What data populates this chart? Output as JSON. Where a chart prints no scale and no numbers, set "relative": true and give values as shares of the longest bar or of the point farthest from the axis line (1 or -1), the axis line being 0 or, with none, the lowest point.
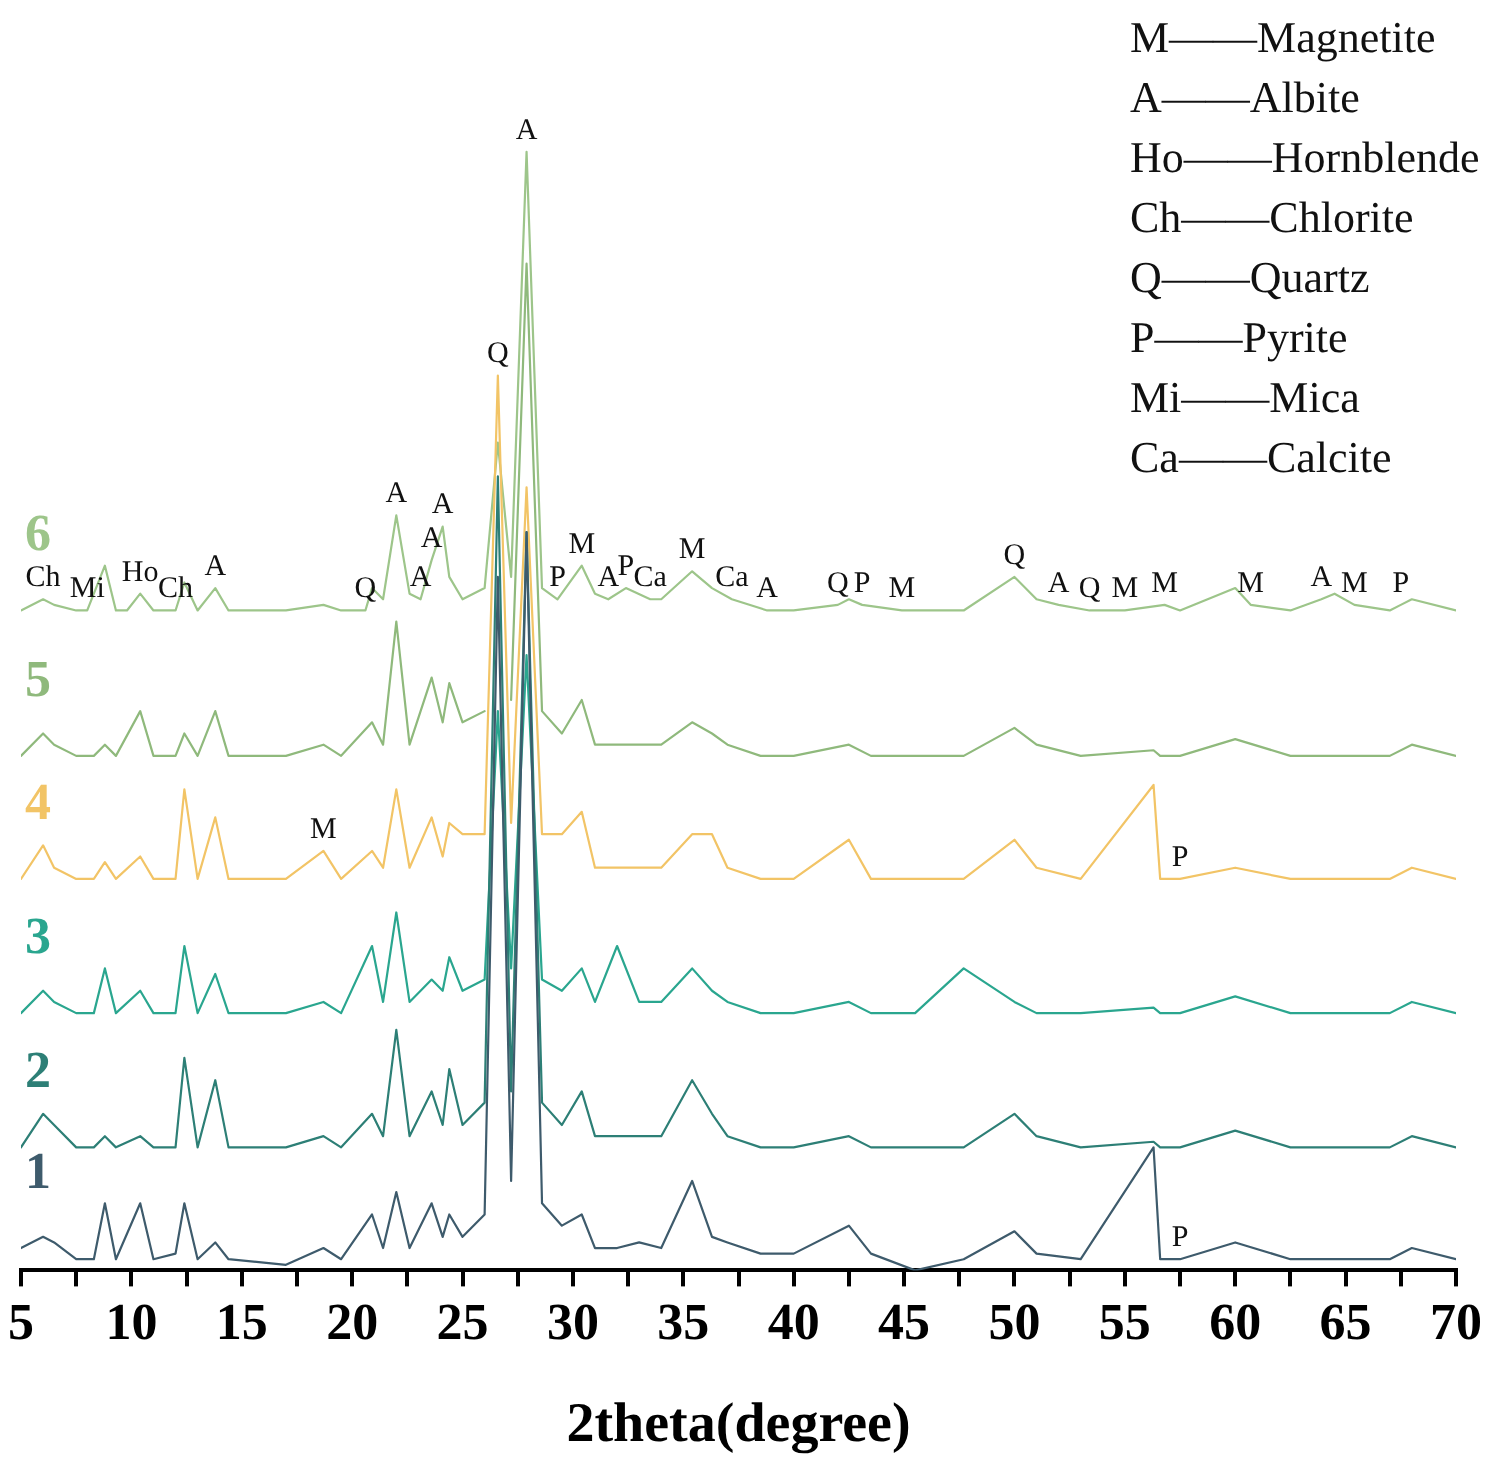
{
  "chart_data": {
    "type": "line",
    "relative": true,
    "xlabel": "2theta(degree)",
    "xlim": [
      5,
      70
    ],
    "xticks": [
      5,
      {
        "value": 7.5,
        "label": null
      },
      10,
      {
        "value": 12.5,
        "label": null
      },
      15,
      {
        "value": 17.5,
        "label": null
      },
      20,
      {
        "value": 22.5,
        "label": null
      },
      25,
      {
        "value": 27.5,
        "label": null
      },
      30,
      {
        "value": 32.5,
        "label": null
      },
      35,
      {
        "value": 37.5,
        "label": null
      },
      40,
      {
        "value": 42.5,
        "label": null
      },
      45,
      {
        "value": 47.5,
        "label": null
      },
      50,
      {
        "value": 52.5,
        "label": null
      },
      55,
      {
        "value": 57.5,
        "label": null
      },
      60,
      {
        "value": 62.5,
        "label": null
      },
      65,
      {
        "value": 67.5,
        "label": null
      },
      70
    ],
    "x": [
      5,
      6,
      6.5,
      7.5,
      8.3,
      8.8,
      9.3,
      10.4,
      11,
      12,
      12.4,
      13,
      13.8,
      14.4,
      17,
      18.7,
      19.5,
      20.9,
      21.4,
      22,
      22.6,
      23.6,
      24.1,
      24.4,
      25,
      26,
      26.6,
      27.2,
      27.9,
      28.6,
      29.5,
      30.4,
      31,
      32,
      33,
      34,
      35.4,
      36.3,
      37,
      38.5,
      40,
      42.5,
      43.5,
      45.5,
      47.7,
      50,
      51,
      53,
      56.3,
      56.6,
      57.5,
      60,
      62.5,
      64.5,
      67,
      68,
      70
    ],
    "series": [
      {
        "name": "1",
        "color": "#3e5b6c",
        "values": [
          0.02,
          0.03,
          0.025,
          0.01,
          0.01,
          0.06,
          0.01,
          0.06,
          0.01,
          0.015,
          0.06,
          0.01,
          0.025,
          0.01,
          0.005,
          0.02,
          0.01,
          0.05,
          0.02,
          0.07,
          0.02,
          0.06,
          0.03,
          0.05,
          0.03,
          0.05,
          0.62,
          0.08,
          0.66,
          0.06,
          0.04,
          0.05,
          0.02,
          0.02,
          0.025,
          0.02,
          0.08,
          0.03,
          0.025,
          0.015,
          0.015,
          0.04,
          0.015,
          0,
          0.01,
          0.035,
          0.015,
          0.01,
          0.11,
          0.01,
          0.01,
          0.025,
          0.01,
          0.01,
          0.01,
          0.02,
          0.01
        ]
      },
      {
        "name": "2",
        "color": "#2d7f76",
        "values": [
          0.11,
          0.14,
          0.13,
          0.11,
          0.11,
          0.12,
          0.11,
          0.12,
          0.11,
          0.11,
          0.19,
          0.11,
          0.17,
          0.11,
          0.11,
          0.12,
          0.11,
          0.14,
          0.12,
          0.215,
          0.12,
          0.16,
          0.13,
          0.18,
          0.13,
          0.15,
          0.71,
          0.16,
          0.66,
          0.15,
          0.13,
          0.16,
          0.12,
          0.12,
          0.12,
          0.12,
          0.17,
          0.14,
          0.12,
          0.11,
          0.11,
          0.12,
          0.11,
          0.11,
          0.11,
          0.14,
          0.12,
          0.11,
          0.115,
          0.11,
          0.11,
          0.125,
          0.11,
          0.11,
          0.11,
          0.12,
          0.11
        ]
      },
      {
        "name": "3",
        "color": "#2aa68f",
        "values": [
          0.23,
          0.25,
          0.24,
          0.23,
          0.23,
          0.27,
          0.23,
          0.25,
          0.23,
          0.23,
          0.29,
          0.23,
          0.265,
          0.23,
          0.23,
          0.24,
          0.23,
          0.29,
          0.24,
          0.32,
          0.24,
          0.26,
          0.25,
          0.28,
          0.25,
          0.26,
          0.5,
          0.27,
          0.55,
          0.26,
          0.25,
          0.27,
          0.24,
          0.29,
          0.24,
          0.24,
          0.27,
          0.25,
          0.24,
          0.23,
          0.23,
          0.24,
          0.23,
          0.23,
          0.27,
          0.24,
          0.23,
          0.23,
          0.235,
          0.23,
          0.23,
          0.245,
          0.23,
          0.23,
          0.23,
          0.24,
          0.23
        ]
      },
      {
        "name": "4",
        "color": "#f2c466",
        "values": [
          0.35,
          0.38,
          0.36,
          0.35,
          0.35,
          0.365,
          0.35,
          0.37,
          0.35,
          0.35,
          0.43,
          0.35,
          0.405,
          0.35,
          0.35,
          0.375,
          0.35,
          0.375,
          0.36,
          0.43,
          0.36,
          0.405,
          0.37,
          0.4,
          0.39,
          0.39,
          0.8,
          0.4,
          0.7,
          0.39,
          0.39,
          0.41,
          0.36,
          0.36,
          0.36,
          0.36,
          0.39,
          0.39,
          0.36,
          0.35,
          0.35,
          0.385,
          0.35,
          0.35,
          0.35,
          0.385,
          0.36,
          0.35,
          0.434,
          0.35,
          0.35,
          0.36,
          0.35,
          0.35,
          0.35,
          0.36,
          0.35
        ]
      },
      {
        "name": "5",
        "color": "#8fb97c",
        "values": [
          0.46,
          0.48,
          0.47,
          0.46,
          0.46,
          0.47,
          0.46,
          0.5,
          0.46,
          0.46,
          0.48,
          0.46,
          0.5,
          0.46,
          0.46,
          0.47,
          0.46,
          0.49,
          0.47,
          0.58,
          0.47,
          0.53,
          0.49,
          0.525,
          0.49,
          0.5,
          null,
          0.51,
          0.9,
          0.5,
          0.48,
          0.51,
          0.47,
          0.47,
          0.47,
          0.47,
          0.49,
          0.48,
          0.47,
          0.46,
          0.46,
          0.47,
          0.46,
          0.46,
          0.46,
          0.485,
          0.47,
          0.46,
          0.465,
          0.46,
          0.46,
          0.475,
          0.46,
          0.46,
          0.46,
          0.47,
          0.46
        ]
      },
      {
        "name": "6",
        "color": "#9dc58a",
        "x": [
          5,
          6,
          6.5,
          7.5,
          8,
          8.8,
          9.3,
          9.8,
          10.4,
          11,
          12,
          12.4,
          13,
          13.8,
          14.4,
          17,
          18.7,
          19.5,
          20.6,
          20.9,
          21.4,
          22,
          22.6,
          23.1,
          23.6,
          24.1,
          24.4,
          25,
          26,
          26.6,
          27.2,
          27.9,
          28.6,
          29.3,
          30.4,
          31,
          31.6,
          32.4,
          33.5,
          34,
          35.4,
          36.3,
          37.2,
          38.8,
          40,
          42,
          42.5,
          43.1,
          44.9,
          47.7,
          50,
          51,
          52,
          53.4,
          55,
          56.8,
          57.5,
          60,
          60.7,
          62.5,
          63.9,
          64.5,
          65.4,
          67,
          67.5,
          68,
          70
        ],
        "values": [
          0.59,
          0.6,
          0.595,
          0.59,
          0.59,
          0.63,
          0.59,
          0.59,
          0.605,
          0.59,
          0.59,
          0.615,
          0.59,
          0.61,
          0.59,
          0.59,
          0.595,
          0.59,
          0.59,
          0.61,
          0.6,
          0.675,
          0.605,
          0.6,
          0.635,
          0.665,
          0.62,
          0.6,
          0.61,
          0.74,
          0.62,
          1,
          0.61,
          0.6,
          0.63,
          0.605,
          0.6,
          0.61,
          0.6,
          0.6,
          0.625,
          0.61,
          0.6,
          0.59,
          0.59,
          0.595,
          0.6,
          0.595,
          0.59,
          0.59,
          0.62,
          0.6,
          0.595,
          0.59,
          0.59,
          0.595,
          0.59,
          0.61,
          0.595,
          0.59,
          0.6,
          0.605,
          0.595,
          0.59,
          0.595,
          0.6,
          0.59
        ]
      }
    ],
    "annotations": [
      "M——Magnetite",
      "A——Albite",
      "Ho——Hornblende",
      "Ch——Chlorite",
      "Q——Quartz",
      "P——Pyrite",
      "Mi——Mica",
      "Ca——Calcite",
      {
        "text": "Ch",
        "x": 6,
        "y": 0.6
      },
      {
        "text": "Mi",
        "x": 8,
        "y": 0.59
      },
      {
        "text": "Ho",
        "x": 10.4,
        "y": 0.605
      },
      {
        "text": "Ch",
        "x": 12,
        "y": 0.59
      },
      {
        "text": "A",
        "x": 13.8,
        "y": 0.61
      },
      {
        "text": "Q",
        "x": 20.6,
        "y": 0.59
      },
      {
        "text": "A",
        "x": 22,
        "y": 0.675
      },
      {
        "text": "A",
        "x": 23.1,
        "y": 0.6
      },
      {
        "text": "A",
        "x": 23.6,
        "y": 0.635
      },
      {
        "text": "A",
        "x": 24.1,
        "y": 0.665
      },
      {
        "text": "Q",
        "x": 26.6,
        "y": 0.8
      },
      {
        "text": "A",
        "x": 27.9,
        "y": 1
      },
      {
        "text": "P",
        "x": 29.3,
        "y": 0.6
      },
      {
        "text": "M",
        "x": 30.4,
        "y": 0.63
      },
      {
        "text": "A",
        "x": 31.6,
        "y": 0.6
      },
      {
        "text": "P",
        "x": 32.4,
        "y": 0.61
      },
      {
        "text": "Ca",
        "x": 33.5,
        "y": 0.6
      },
      {
        "text": "M",
        "x": 35.4,
        "y": 0.625
      },
      {
        "text": "Ca",
        "x": 37.2,
        "y": 0.6
      },
      {
        "text": "A",
        "x": 38.8,
        "y": 0.59
      },
      {
        "text": "Q",
        "x": 42,
        "y": 0.595
      },
      {
        "text": "P",
        "x": 43.1,
        "y": 0.595
      },
      {
        "text": "M",
        "x": 44.9,
        "y": 0.59
      },
      {
        "text": "Q",
        "x": 50,
        "y": 0.62
      },
      {
        "text": "A",
        "x": 52,
        "y": 0.595
      },
      {
        "text": "Q",
        "x": 53.4,
        "y": 0.59
      },
      {
        "text": "M",
        "x": 55,
        "y": 0.59
      },
      {
        "text": "M",
        "x": 56.8,
        "y": 0.595
      },
      {
        "text": "M",
        "x": 60.7,
        "y": 0.595
      },
      {
        "text": "A",
        "x": 63.9,
        "y": 0.6
      },
      {
        "text": "M",
        "x": 65.4,
        "y": 0.595
      },
      {
        "text": "P",
        "x": 67.5,
        "y": 0.595
      },
      {
        "text": "M",
        "x": 18.7,
        "y": 0.375
      },
      {
        "text": "P",
        "x": 57.5,
        "y": 0.35
      },
      {
        "text": "P",
        "x": 57.5,
        "y": 0.01
      }
    ]
  }
}
